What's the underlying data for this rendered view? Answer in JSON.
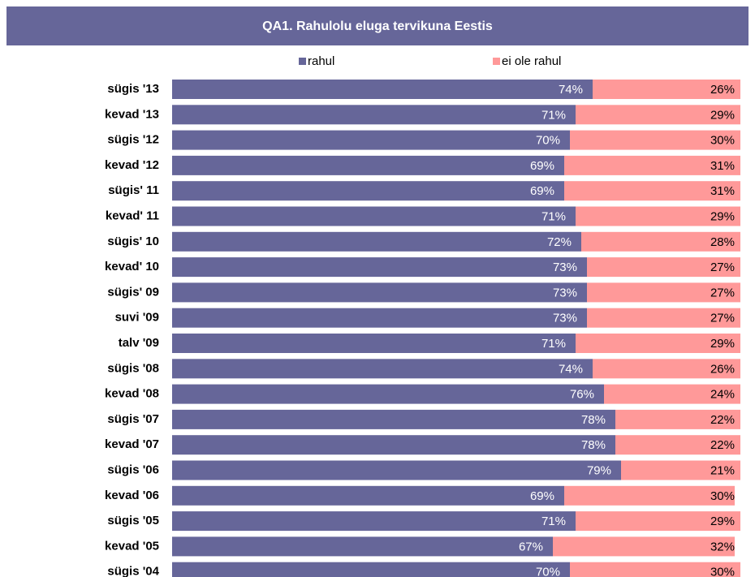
{
  "chart_data": {
    "type": "stacked_barh",
    "title": "QA1. Rahulolu eluga tervikuna Eestis",
    "categories": [
      "sügis '13",
      "kevad '13",
      "sügis '12",
      "kevad '12",
      "sügis' 11",
      "kevad' 11",
      "sügis' 10",
      "kevad' 10",
      "sügis' 09",
      "suvi '09",
      "talv '09",
      "sügis '08",
      "kevad '08",
      "sügis '07",
      "kevad '07",
      "sügis '06",
      "kevad '06",
      "sügis '05",
      "kevad '05",
      "sügis '04"
    ],
    "series": [
      {
        "name": "rahul",
        "color": "#666699",
        "values": [
          74,
          71,
          70,
          69,
          69,
          71,
          72,
          73,
          73,
          73,
          71,
          74,
          76,
          78,
          78,
          79,
          69,
          71,
          67,
          70
        ],
        "value_labels": [
          "74%",
          "71%",
          "70%",
          "69%",
          "69%",
          "71%",
          "72%",
          "73%",
          "73%",
          "73%",
          "71%",
          "74%",
          "76%",
          "78%",
          "78%",
          "79%",
          "69%",
          "71%",
          "67%",
          "70%"
        ]
      },
      {
        "name": "ei ole rahul",
        "color": "#ff9999",
        "values": [
          26,
          29,
          30,
          31,
          31,
          29,
          28,
          27,
          27,
          27,
          29,
          26,
          24,
          22,
          22,
          21,
          30,
          29,
          32,
          30
        ],
        "value_labels": [
          "26%",
          "29%",
          "30%",
          "31%",
          "31%",
          "29%",
          "28%",
          "27%",
          "27%",
          "27%",
          "29%",
          "26%",
          "24%",
          "22%",
          "22%",
          "21%",
          "30%",
          "29%",
          "32%",
          "30%"
        ]
      }
    ],
    "xlim": [
      0,
      100
    ],
    "legend": "top"
  }
}
